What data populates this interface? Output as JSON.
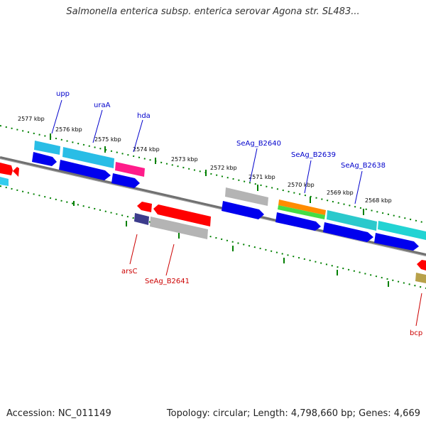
{
  "title": "Salmonella enterica subsp. enterica serovar Agona str. SL483...",
  "accession_label": "Accession: NC_011149",
  "summary_label": "Topology: circular; Length: 4,798,660 bp; Genes: 4,669",
  "kbp_ticks": [
    "2577 kbp",
    "2576 kbp",
    "2575 kbp",
    "2574 kbp",
    "2573 kbp",
    "2572 kbp",
    "2571 kbp",
    "2570 kbp",
    "2569 kbp",
    "2568 kbp"
  ],
  "forward_labels": [
    "upp",
    "uraA",
    "hda",
    "SeAg_B2640",
    "SeAg_B2639",
    "SeAg_B2638"
  ],
  "reverse_labels": [
    "arsC",
    "SeAg_B2641",
    "bcp"
  ],
  "colors": {
    "forward_label": "#0000cc",
    "reverse_label": "#cc0000",
    "backbone": "#888888",
    "tick_dots": "#008000"
  }
}
